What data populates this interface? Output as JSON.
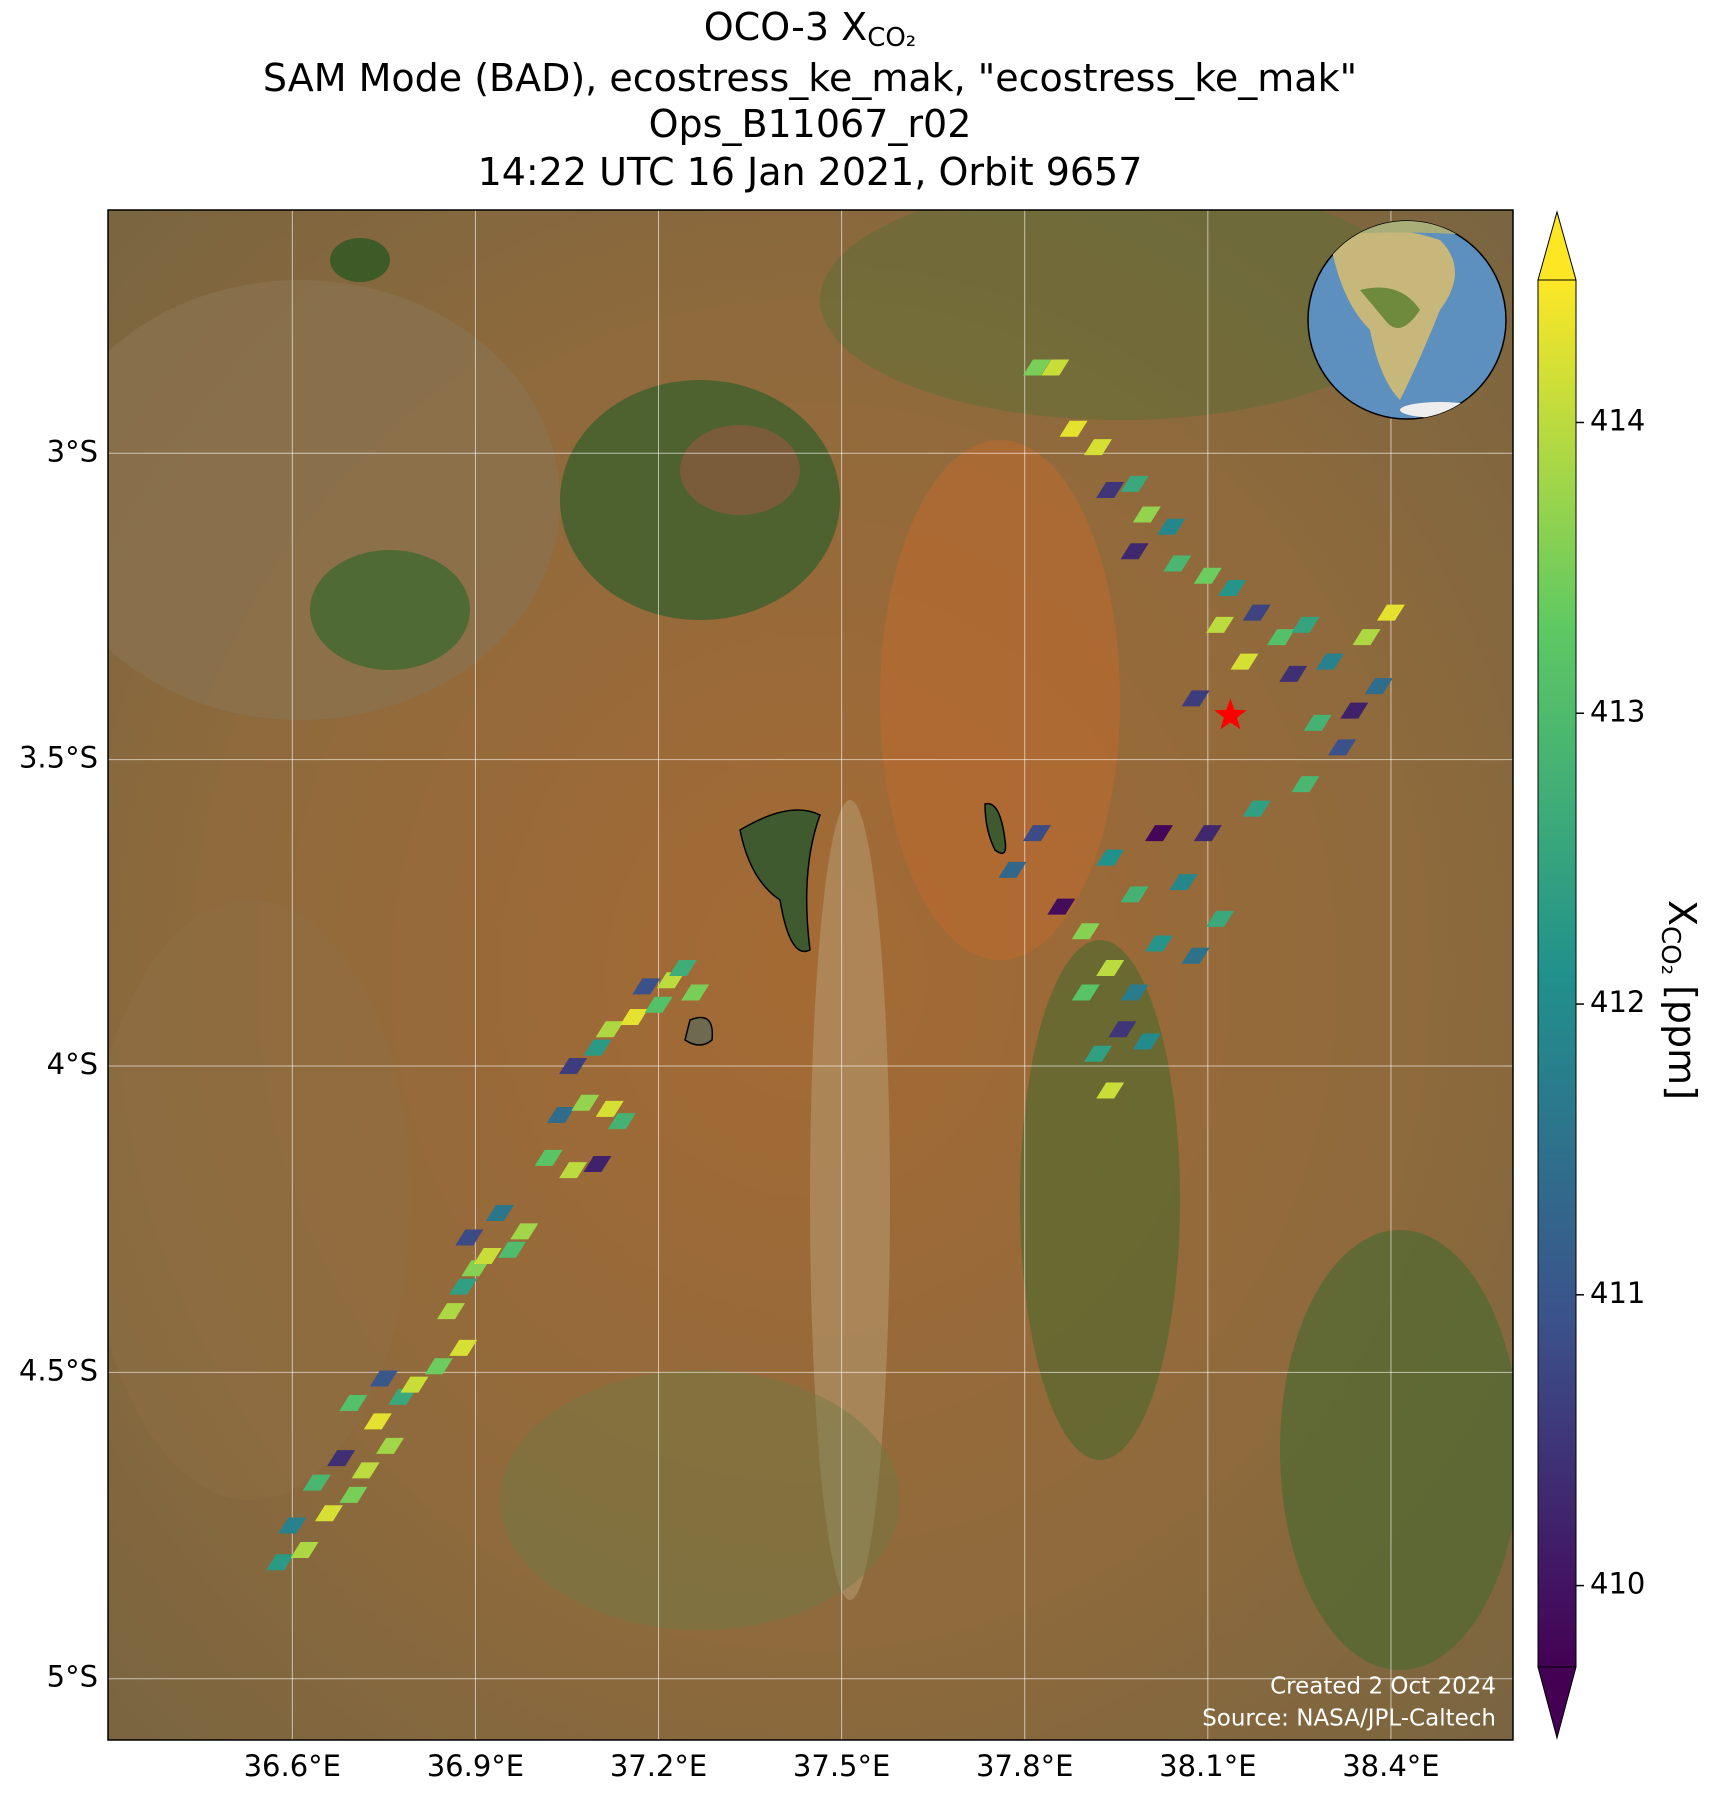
{
  "chart_data": {
    "type": "scatter",
    "title_lines": [
      "OCO-3 X",
      "SAM Mode (BAD), ecostress_ke_mak, \"ecostress_ke_mak\"",
      "Ops_B11067_r02",
      "14:22 UTC 16 Jan 2021, Orbit 9657"
    ],
    "title_subscript": "CO₂",
    "colormap": "viridis",
    "colorbar_label_symbol": "X",
    "colorbar_label_subscript": "CO₂",
    "colorbar_label_unit": "[ppm]",
    "clim": [
      409.72,
      414.49
    ],
    "cticks": [
      410,
      411,
      412,
      413,
      414
    ],
    "xlim": [
      36.298,
      38.6
    ],
    "ylim": [
      -5.1,
      -2.603
    ],
    "xticks": [
      {
        "value": 36.6,
        "label": "36.6°E"
      },
      {
        "value": 36.9,
        "label": "36.9°E"
      },
      {
        "value": 37.2,
        "label": "37.2°E"
      },
      {
        "value": 37.5,
        "label": "37.5°E"
      },
      {
        "value": 37.8,
        "label": "37.8°E"
      },
      {
        "value": 38.1,
        "label": "38.1°E"
      },
      {
        "value": 38.4,
        "label": "38.4°E"
      }
    ],
    "yticks": [
      {
        "value": -3,
        "label": "3°S"
      },
      {
        "value": -3.5,
        "label": "3.5°S"
      },
      {
        "value": -4,
        "label": "4°S"
      },
      {
        "value": -4.5,
        "label": "4.5°S"
      },
      {
        "value": -5,
        "label": "5°S"
      }
    ],
    "grid": true,
    "target_lon": 38.137,
    "target_lat": -3.428,
    "target_color": "#ff0000",
    "annotations": [
      "Created 2 Oct 2024",
      "Source: NASA/JPL-Caltech"
    ],
    "x": [
      36.58,
      36.62,
      36.6,
      36.66,
      36.7,
      36.64,
      36.72,
      36.68,
      36.76,
      36.74,
      36.7,
      36.78,
      36.75,
      36.8,
      36.84,
      36.88,
      36.86,
      36.88,
      36.9,
      36.92,
      36.96,
      36.89,
      36.98,
      36.94,
      37.02,
      37.06,
      37.1,
      37.04,
      37.08,
      37.12,
      37.14,
      37.06,
      37.1,
      37.12,
      37.16,
      37.2,
      37.18,
      37.22,
      37.26,
      37.24,
      37.82,
      37.85,
      37.88,
      37.92,
      37.94,
      37.98,
      38.0,
      38.04,
      37.98,
      38.05,
      38.1,
      38.14,
      38.12,
      38.18,
      38.22,
      38.26,
      38.16,
      38.24,
      38.3,
      38.36,
      38.4,
      38.34,
      38.38,
      38.28,
      38.32,
      38.08,
      37.82,
      37.86,
      37.78,
      37.94,
      38.02,
      38.1,
      38.18,
      38.26,
      37.9,
      37.98,
      38.06,
      38.12,
      37.94,
      38.02,
      38.08,
      37.98,
      37.96,
      37.92,
      37.94,
      38.0,
      37.9
    ],
    "y": [
      -4.81,
      -4.79,
      -4.75,
      -4.73,
      -4.7,
      -4.68,
      -4.66,
      -4.64,
      -4.62,
      -4.58,
      -4.55,
      -4.54,
      -4.51,
      -4.52,
      -4.49,
      -4.46,
      -4.4,
      -4.36,
      -4.33,
      -4.31,
      -4.3,
      -4.28,
      -4.27,
      -4.24,
      -4.15,
      -4.17,
      -4.16,
      -4.08,
      -4.06,
      -4.07,
      -4.09,
      -4.0,
      -3.97,
      -3.94,
      -3.92,
      -3.9,
      -3.87,
      -3.86,
      -3.88,
      -3.84,
      -2.86,
      -2.86,
      -2.96,
      -2.99,
      -3.06,
      -3.05,
      -3.1,
      -3.12,
      -3.16,
      -3.18,
      -3.2,
      -3.22,
      -3.28,
      -3.26,
      -3.3,
      -3.28,
      -3.34,
      -3.36,
      -3.34,
      -3.3,
      -3.26,
      -3.42,
      -3.38,
      -3.44,
      -3.48,
      -3.4,
      -3.62,
      -3.74,
      -3.68,
      -3.66,
      -3.62,
      -3.62,
      -3.58,
      -3.54,
      -3.78,
      -3.72,
      -3.7,
      -3.76,
      -3.84,
      -3.8,
      -3.82,
      -3.88,
      -3.94,
      -3.98,
      -4.04,
      -3.96,
      -3.88
    ],
    "values": [
      412.3,
      413.9,
      411.8,
      414.2,
      413.5,
      412.9,
      414.0,
      410.4,
      413.8,
      414.3,
      413.1,
      412.6,
      411.0,
      414.1,
      413.4,
      414.2,
      413.9,
      412.4,
      413.6,
      414.1,
      413.0,
      410.8,
      413.8,
      411.6,
      413.2,
      414.0,
      410.2,
      411.4,
      413.7,
      414.2,
      412.8,
      410.6,
      412.3,
      413.9,
      414.3,
      413.1,
      410.9,
      414.0,
      413.5,
      412.7,
      413.5,
      414.1,
      414.3,
      414.2,
      410.5,
      412.6,
      413.7,
      411.9,
      410.3,
      412.9,
      413.4,
      412.2,
      414.0,
      410.7,
      413.1,
      412.5,
      414.2,
      410.4,
      411.8,
      413.9,
      414.3,
      410.2,
      411.4,
      412.8,
      410.9,
      410.6,
      410.8,
      409.9,
      411.3,
      412.1,
      409.8,
      410.3,
      412.4,
      412.9,
      413.6,
      412.8,
      411.9,
      412.6,
      414.0,
      412.2,
      411.5,
      411.7,
      410.5,
      412.4,
      414.1,
      412.0,
      413.2
    ]
  }
}
